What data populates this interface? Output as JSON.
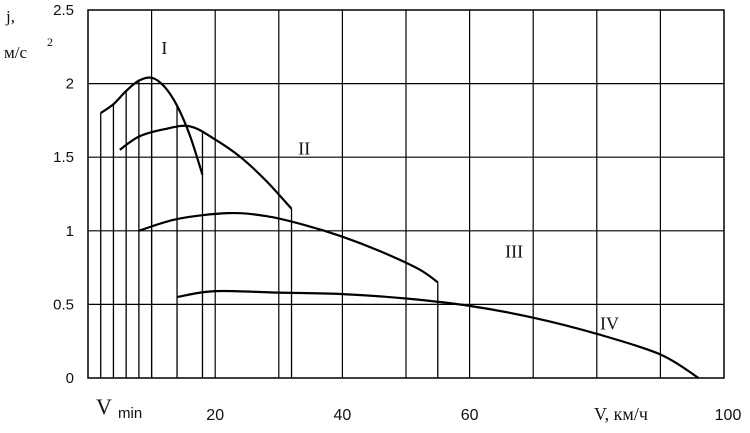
{
  "chart_data": {
    "type": "line",
    "ylabel_line1": "j,",
    "ylabel_line2": "м/с",
    "ylabel_sup": "2",
    "xlabel": "V, км/ч",
    "xlim": [
      0,
      100
    ],
    "ylim": [
      0,
      2.5
    ],
    "x_ticks": [
      "20",
      "40",
      "60",
      "100"
    ],
    "y_ticks": [
      "0",
      "0.5",
      "1",
      "1.5",
      "2",
      "2.5"
    ],
    "vmin_label": "V",
    "vmin_sub": "min",
    "grid": true,
    "series": [
      {
        "name": "I",
        "x": [
          2,
          4,
          6,
          8,
          10,
          12,
          14,
          16,
          18
        ],
        "y": [
          1.8,
          1.86,
          1.95,
          2.02,
          2.04,
          1.98,
          1.85,
          1.65,
          1.38
        ]
      },
      {
        "name": "II",
        "x": [
          5,
          8,
          12,
          16,
          20,
          24,
          28,
          32
        ],
        "y": [
          1.55,
          1.64,
          1.69,
          1.71,
          1.62,
          1.5,
          1.34,
          1.15
        ]
      },
      {
        "name": "III",
        "x": [
          8,
          14,
          22,
          28,
          34,
          40,
          46,
          52,
          55
        ],
        "y": [
          1.0,
          1.08,
          1.12,
          1.1,
          1.04,
          0.96,
          0.86,
          0.74,
          0.65
        ]
      },
      {
        "name": "IV",
        "x": [
          14,
          20,
          30,
          40,
          50,
          60,
          70,
          80,
          90,
          96
        ],
        "y": [
          0.55,
          0.59,
          0.58,
          0.57,
          0.54,
          0.49,
          0.41,
          0.3,
          0.16,
          0.0
        ]
      }
    ],
    "vertical_drops": [
      2,
      4,
      6,
      8,
      10,
      14,
      18,
      32,
      55
    ]
  }
}
